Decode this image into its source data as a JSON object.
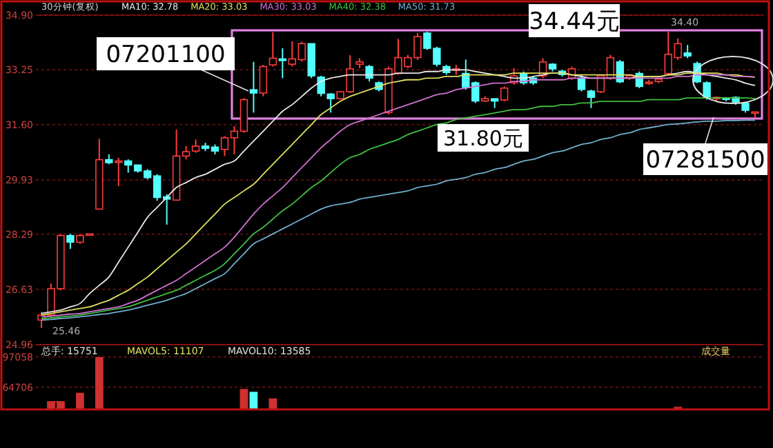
{
  "chart_data": [
    {
      "type": "candlestick",
      "title": "30分钟(复权)",
      "legend": "top left",
      "grid": "y",
      "categories": [
        null,
        null,
        null,
        null,
        null,
        null,
        null,
        null,
        null,
        null,
        null,
        null,
        null,
        null,
        null,
        null,
        null,
        null,
        null,
        null,
        null,
        null,
        null,
        null,
        null,
        null,
        null,
        null,
        null,
        null,
        null,
        null,
        null,
        null,
        null,
        null,
        null,
        null,
        null,
        null,
        null,
        null,
        null,
        null,
        null,
        null,
        null,
        null,
        null,
        null,
        null,
        null,
        null,
        null,
        null,
        null,
        null,
        null,
        null,
        null,
        null,
        null,
        null,
        null,
        null,
        null,
        null,
        null,
        null,
        null,
        null,
        null,
        null,
        null,
        null
      ],
      "ylim": [
        24.96,
        34.9
      ],
      "yticks": [
        {
          "value": 24.96,
          "label": "24.96"
        },
        26.63,
        28.29,
        29.93,
        {
          "value": 31.6,
          "label": "31.60"
        },
        33.25,
        {
          "value": 34.9,
          "label": "34.90"
        }
      ],
      "ohlc": [
        [
          25.7,
          25.95,
          25.46,
          25.85
        ],
        [
          25.85,
          26.8,
          25.8,
          26.65
        ],
        [
          26.65,
          28.3,
          26.6,
          28.25
        ],
        [
          28.25,
          28.3,
          27.85,
          28.05
        ],
        [
          28.05,
          28.3,
          28.0,
          28.25
        ],
        [
          28.28,
          28.32,
          28.27,
          28.3
        ],
        [
          29.05,
          31.17,
          29.05,
          30.54
        ],
        [
          30.54,
          30.7,
          30.4,
          30.45
        ],
        [
          30.48,
          30.6,
          29.74,
          30.5
        ],
        [
          30.5,
          30.55,
          30.15,
          30.38
        ],
        [
          30.38,
          30.4,
          30.15,
          30.2
        ],
        [
          30.2,
          30.25,
          29.95,
          30.0
        ],
        [
          30.05,
          30.1,
          29.3,
          29.4
        ],
        [
          29.42,
          29.5,
          28.58,
          29.35
        ],
        [
          29.32,
          31.45,
          29.3,
          30.65
        ],
        [
          30.65,
          30.95,
          30.55,
          30.78
        ],
        [
          30.8,
          31.15,
          30.75,
          30.95
        ],
        [
          30.95,
          31.05,
          30.8,
          30.88
        ],
        [
          30.92,
          31.0,
          30.7,
          30.8
        ],
        [
          30.85,
          31.25,
          30.65,
          31.2
        ],
        [
          31.2,
          31.55,
          30.7,
          31.4
        ],
        [
          31.4,
          32.4,
          31.35,
          32.35
        ],
        [
          32.65,
          33.49,
          31.96,
          32.55
        ],
        [
          32.55,
          33.4,
          32.45,
          33.35
        ],
        [
          33.4,
          34.39,
          33.35,
          33.6
        ],
        [
          33.58,
          33.9,
          33.0,
          33.53
        ],
        [
          33.42,
          34.11,
          33.35,
          33.58
        ],
        [
          33.56,
          34.1,
          33.5,
          34.04
        ],
        [
          34.04,
          34.06,
          33.0,
          33.07
        ],
        [
          33.03,
          33.07,
          32.45,
          32.54
        ],
        [
          32.52,
          32.55,
          31.96,
          32.38
        ],
        [
          32.38,
          32.59,
          32.35,
          32.59
        ],
        [
          32.59,
          33.69,
          32.55,
          33.28
        ],
        [
          33.42,
          33.6,
          33.3,
          33.49
        ],
        [
          33.35,
          33.4,
          32.9,
          33.0
        ],
        [
          32.86,
          32.9,
          32.6,
          32.66
        ],
        [
          31.96,
          33.35,
          31.9,
          33.28
        ],
        [
          33.14,
          34.18,
          33.1,
          33.62
        ],
        [
          33.35,
          33.7,
          33.3,
          33.62
        ],
        [
          33.62,
          34.36,
          33.55,
          34.25
        ],
        [
          34.36,
          34.4,
          33.85,
          33.9
        ],
        [
          33.9,
          33.95,
          33.35,
          33.42
        ],
        [
          33.35,
          33.4,
          33.1,
          33.17
        ],
        [
          33.26,
          33.4,
          33.1,
          33.28
        ],
        [
          33.14,
          33.56,
          32.65,
          32.72
        ],
        [
          32.86,
          32.9,
          32.25,
          32.31
        ],
        [
          32.31,
          32.45,
          32.28,
          32.38
        ],
        [
          32.38,
          32.4,
          32.1,
          32.31
        ],
        [
          32.34,
          32.75,
          32.3,
          32.7
        ],
        [
          32.86,
          33.3,
          32.8,
          33.07
        ],
        [
          33.14,
          33.2,
          32.8,
          32.86
        ],
        [
          33.0,
          33.05,
          32.8,
          32.86
        ],
        [
          33.07,
          33.6,
          33.0,
          33.49
        ],
        [
          33.42,
          33.45,
          33.2,
          33.28
        ],
        [
          33.21,
          33.25,
          33.05,
          33.11
        ],
        [
          33.0,
          33.35,
          32.95,
          33.28
        ],
        [
          33.0,
          33.1,
          32.6,
          32.66
        ],
        [
          32.61,
          32.65,
          32.1,
          32.42
        ],
        [
          32.59,
          33.1,
          32.55,
          33.07
        ],
        [
          33.0,
          33.7,
          32.95,
          33.62
        ],
        [
          33.49,
          33.55,
          32.85,
          32.89
        ],
        [
          33.0,
          33.1,
          32.95,
          33.07
        ],
        [
          33.14,
          33.2,
          32.7,
          32.75
        ],
        [
          32.86,
          32.95,
          32.8,
          32.88
        ],
        [
          32.9,
          33.0,
          32.85,
          32.97
        ],
        [
          33.14,
          34.4,
          33.1,
          33.72
        ],
        [
          33.62,
          34.2,
          33.55,
          34.04
        ],
        [
          33.76,
          34.0,
          33.6,
          33.67
        ],
        [
          33.44,
          33.5,
          32.85,
          32.89
        ],
        [
          32.86,
          32.9,
          32.35,
          32.42
        ],
        [
          32.38,
          32.45,
          32.3,
          32.42
        ],
        [
          32.4,
          32.42,
          32.3,
          32.38
        ],
        [
          32.42,
          32.45,
          32.2,
          32.28
        ],
        [
          32.24,
          32.28,
          31.96,
          32.03
        ],
        [
          31.96,
          32.0,
          31.8,
          31.98
        ]
      ],
      "series": [
        {
          "type": "line",
          "name": "MA10: 32.78",
          "color": "#e8e8e8",
          "values": [
            25.9,
            25.95,
            26.0,
            26.1,
            26.2,
            26.5,
            26.75,
            27.0,
            27.45,
            27.9,
            28.35,
            28.8,
            29.1,
            29.4,
            29.7,
            29.85,
            30.0,
            30.1,
            30.25,
            30.4,
            30.5,
            30.8,
            31.1,
            31.4,
            31.7,
            32.0,
            32.2,
            32.45,
            32.7,
            32.9,
            33.0,
            33.05,
            33.1,
            33.1,
            33.1,
            33.1,
            33.1,
            33.15,
            33.15,
            33.15,
            33.2,
            33.2,
            33.25,
            33.25,
            33.25,
            33.2,
            33.15,
            33.1,
            33.05,
            33.0,
            33.0,
            33.05,
            33.1,
            33.15,
            33.15,
            33.1,
            33.05,
            33.0,
            33.0,
            33.0,
            33.0,
            33.0,
            33.05,
            33.05,
            33.05,
            33.1,
            33.15,
            33.2,
            33.15,
            33.1,
            33.05,
            33.0,
            32.95,
            32.85,
            32.78
          ]
        },
        {
          "type": "line",
          "name": "MA20: 33.03",
          "color": "#e0e060",
          "values": [
            25.85,
            25.9,
            25.95,
            26.0,
            26.05,
            26.1,
            26.2,
            26.3,
            26.45,
            26.6,
            26.8,
            27.0,
            27.25,
            27.5,
            27.75,
            28.0,
            28.3,
            28.6,
            28.9,
            29.2,
            29.4,
            29.6,
            29.8,
            30.1,
            30.4,
            30.7,
            31.0,
            31.3,
            31.6,
            31.9,
            32.1,
            32.3,
            32.45,
            32.55,
            32.65,
            32.75,
            32.85,
            32.9,
            32.95,
            32.95,
            33.0,
            33.0,
            33.05,
            33.05,
            33.1,
            33.1,
            33.1,
            33.1,
            33.1,
            33.15,
            33.15,
            33.15,
            33.15,
            33.15,
            33.15,
            33.1,
            33.1,
            33.1,
            33.1,
            33.1,
            33.1,
            33.1,
            33.05,
            33.05,
            33.05,
            33.1,
            33.1,
            33.15,
            33.15,
            33.15,
            33.15,
            33.1,
            33.1,
            33.05,
            33.03
          ]
        },
        {
          "type": "line",
          "name": "MA30: 33.03",
          "color": "#d070d0",
          "values": [
            25.8,
            25.82,
            25.85,
            25.88,
            25.9,
            25.95,
            26.0,
            26.05,
            26.1,
            26.2,
            26.3,
            26.45,
            26.6,
            26.75,
            26.9,
            27.1,
            27.3,
            27.5,
            27.7,
            27.9,
            28.2,
            28.55,
            28.9,
            29.2,
            29.45,
            29.7,
            30.0,
            30.3,
            30.6,
            30.9,
            31.15,
            31.4,
            31.6,
            31.7,
            31.8,
            31.9,
            32.0,
            32.1,
            32.2,
            32.3,
            32.4,
            32.5,
            32.55,
            32.65,
            32.7,
            32.75,
            32.8,
            32.85,
            32.85,
            32.9,
            32.9,
            32.95,
            32.95,
            32.95,
            32.95,
            33.0,
            33.0,
            33.0,
            33.0,
            33.0,
            33.0,
            33.0,
            33.0,
            33.0,
            33.0,
            33.0,
            33.05,
            33.05,
            33.1,
            33.1,
            33.1,
            33.1,
            33.05,
            33.05,
            33.03
          ]
        },
        {
          "type": "line",
          "name": "MA40: 32.38",
          "color": "#40c040",
          "values": [
            25.75,
            25.77,
            25.8,
            25.82,
            25.85,
            25.9,
            25.95,
            26.0,
            26.05,
            26.1,
            26.2,
            26.3,
            26.4,
            26.5,
            26.6,
            26.75,
            26.9,
            27.05,
            27.2,
            27.4,
            27.7,
            28.0,
            28.3,
            28.5,
            28.75,
            29.0,
            29.2,
            29.45,
            29.7,
            29.9,
            30.15,
            30.4,
            30.6,
            30.7,
            30.85,
            30.95,
            31.05,
            31.15,
            31.3,
            31.4,
            31.5,
            31.6,
            31.65,
            31.75,
            31.8,
            31.85,
            31.9,
            31.95,
            32.0,
            32.05,
            32.05,
            32.1,
            32.15,
            32.15,
            32.2,
            32.2,
            32.25,
            32.25,
            32.3,
            32.3,
            32.3,
            32.3,
            32.3,
            32.35,
            32.35,
            32.35,
            32.35,
            32.4,
            32.4,
            32.4,
            32.4,
            32.4,
            32.4,
            32.4,
            32.38
          ]
        },
        {
          "type": "line",
          "name": "MA50: 31.73",
          "color": "#70b0d0",
          "values": [
            25.7,
            25.72,
            25.75,
            25.77,
            25.8,
            25.83,
            25.87,
            25.9,
            25.95,
            26.0,
            26.07,
            26.15,
            26.22,
            26.3,
            26.4,
            26.5,
            26.65,
            26.8,
            26.95,
            27.1,
            27.4,
            27.7,
            28.0,
            28.15,
            28.3,
            28.45,
            28.6,
            28.75,
            28.9,
            29.05,
            29.15,
            29.2,
            29.25,
            29.35,
            29.4,
            29.45,
            29.5,
            29.55,
            29.6,
            29.7,
            29.75,
            29.8,
            29.9,
            29.95,
            30.0,
            30.1,
            30.15,
            30.25,
            30.3,
            30.4,
            30.5,
            30.55,
            30.65,
            30.75,
            30.8,
            30.9,
            31.0,
            31.05,
            31.15,
            31.2,
            31.3,
            31.35,
            31.45,
            31.5,
            31.55,
            31.6,
            31.62,
            31.65,
            31.68,
            31.7,
            31.7,
            31.72,
            31.72,
            31.73,
            31.73
          ]
        }
      ],
      "annotations": [
        "34.44元",
        "31.80元",
        "07201100",
        "07281500",
        "34.40",
        "25.46"
      ]
    },
    {
      "type": "bar",
      "grid": "y",
      "categories": [
        null,
        null,
        null,
        null,
        null,
        null,
        null,
        null,
        null,
        null,
        null,
        null,
        null,
        null,
        null,
        null,
        null,
        null,
        null,
        null,
        null,
        null,
        null,
        null,
        null,
        null,
        null,
        null,
        null,
        null,
        null,
        null,
        null,
        null,
        null,
        null,
        null,
        null,
        null,
        null,
        null,
        null,
        null,
        null,
        null,
        null,
        null,
        null,
        null,
        null,
        null,
        null,
        null,
        null,
        null,
        null,
        null,
        null,
        null,
        null,
        null,
        null,
        null,
        null,
        null,
        null,
        null,
        null,
        null,
        null,
        null,
        null,
        null,
        null,
        null
      ],
      "ylim": [
        41000,
        110000
      ],
      "yticks": [
        97058,
        64706
      ],
      "series": [
        {
          "color": "#d03030",
          "values": [
            null,
            49000,
            49000,
            null,
            58000,
            null,
            96000,
            null,
            null,
            null,
            null,
            null,
            null,
            null,
            null,
            null,
            null,
            null,
            null,
            null,
            null,
            62000,
            null,
            null,
            52000,
            null,
            null,
            null,
            null,
            null,
            null,
            null,
            null,
            null,
            null,
            null,
            null,
            null,
            null,
            null,
            null,
            null,
            null,
            null,
            null,
            null,
            null,
            null,
            null,
            null,
            null,
            null,
            null,
            null,
            null,
            null,
            null,
            null,
            null,
            null,
            null,
            null,
            null,
            null,
            null,
            null,
            43000,
            null,
            null,
            null,
            null,
            null,
            null,
            null,
            null
          ]
        },
        {
          "color": "#54ffff",
          "values": [
            null,
            null,
            null,
            null,
            null,
            null,
            null,
            null,
            null,
            null,
            null,
            null,
            null,
            null,
            null,
            null,
            null,
            null,
            null,
            null,
            null,
            null,
            59000,
            null,
            null,
            null,
            null,
            null,
            null,
            null,
            null,
            null,
            null,
            null,
            null,
            null,
            null,
            null,
            null,
            null,
            null,
            null,
            null,
            null,
            null,
            null,
            null,
            null,
            null,
            null,
            null,
            null,
            null,
            null,
            null,
            null,
            null,
            null,
            null,
            null,
            null,
            null,
            null,
            null,
            null,
            null,
            null,
            null,
            null,
            null,
            null,
            null,
            null,
            null,
            null
          ]
        }
      ],
      "annotations": [
        "总手: 15751",
        "MAVOL5: 11107",
        "MAVOL10: 13585",
        "成交量"
      ]
    }
  ]
}
